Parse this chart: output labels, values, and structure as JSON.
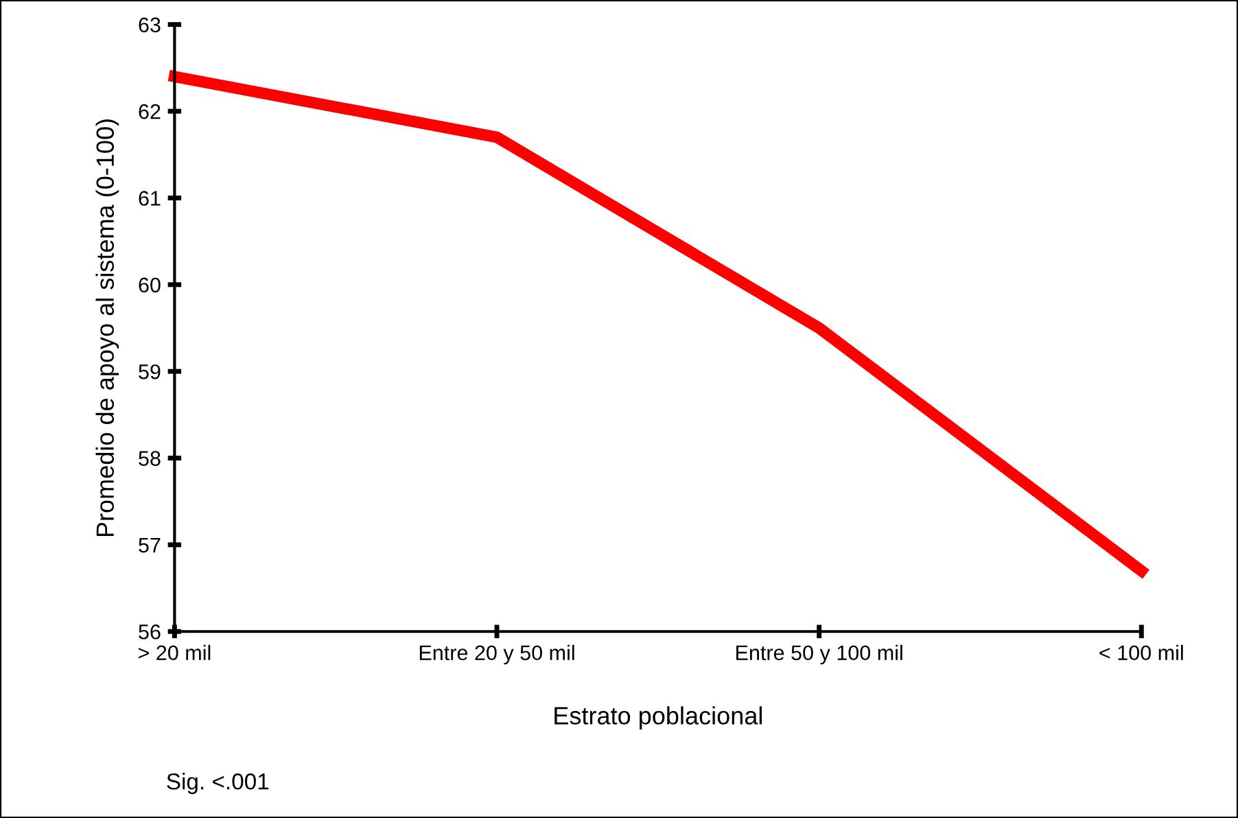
{
  "chart_data": {
    "type": "line",
    "xlabel": "Estrato poblacional",
    "ylabel": "Promedio de apoyo al sistema (0-100)",
    "categories": [
      "> 20 mil",
      "Entre 20 y 50 mil",
      "Entre 50 y 100 mil",
      "< 100 mil"
    ],
    "series": [
      {
        "color": "#ff0000",
        "values": [
          62.4,
          61.7,
          59.5,
          56.7
        ]
      }
    ],
    "ylim": [
      56,
      63
    ],
    "yticks": [
      56,
      57,
      58,
      59,
      60,
      61,
      62,
      63
    ],
    "annotations": [
      "Sig. <.001"
    ],
    "grid": false,
    "legend": false,
    "marker": "none",
    "line_style": "solid"
  }
}
